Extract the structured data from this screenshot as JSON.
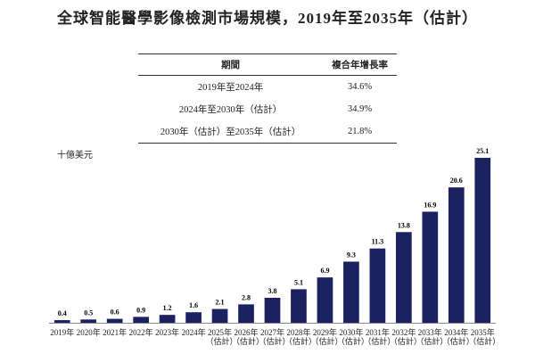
{
  "title": "全球智能醫學影像檢測市場規模，2019年至2035年（估計）",
  "table": {
    "header": [
      "期間",
      "複合年增長率"
    ],
    "rows": [
      [
        "2019年至2024年",
        "34.6%"
      ],
      [
        "2024年至2030年（估計）",
        "34.9%"
      ],
      [
        "2030年（估計）至2035年（估計）",
        "21.8%"
      ]
    ]
  },
  "chart_data": {
    "type": "bar",
    "y_label": "十億美元",
    "categories": [
      "2019年",
      "2020年",
      "2021年",
      "2022年",
      "2023年",
      "2024年",
      "2025年（估計）",
      "2026年（估計）",
      "2027年（估計）",
      "2028年（估計）",
      "2029年（估計）",
      "2030年（估計）",
      "2031年（估計）",
      "2032年（估計）",
      "2033年（估計）",
      "2034年（估計）",
      "2035年（估計）"
    ],
    "values": [
      0.4,
      0.5,
      0.6,
      0.9,
      1.2,
      1.6,
      2.1,
      2.8,
      3.8,
      5.1,
      6.9,
      9.3,
      11.3,
      13.8,
      16.9,
      20.6,
      25.1
    ],
    "color": "#1c2161"
  }
}
